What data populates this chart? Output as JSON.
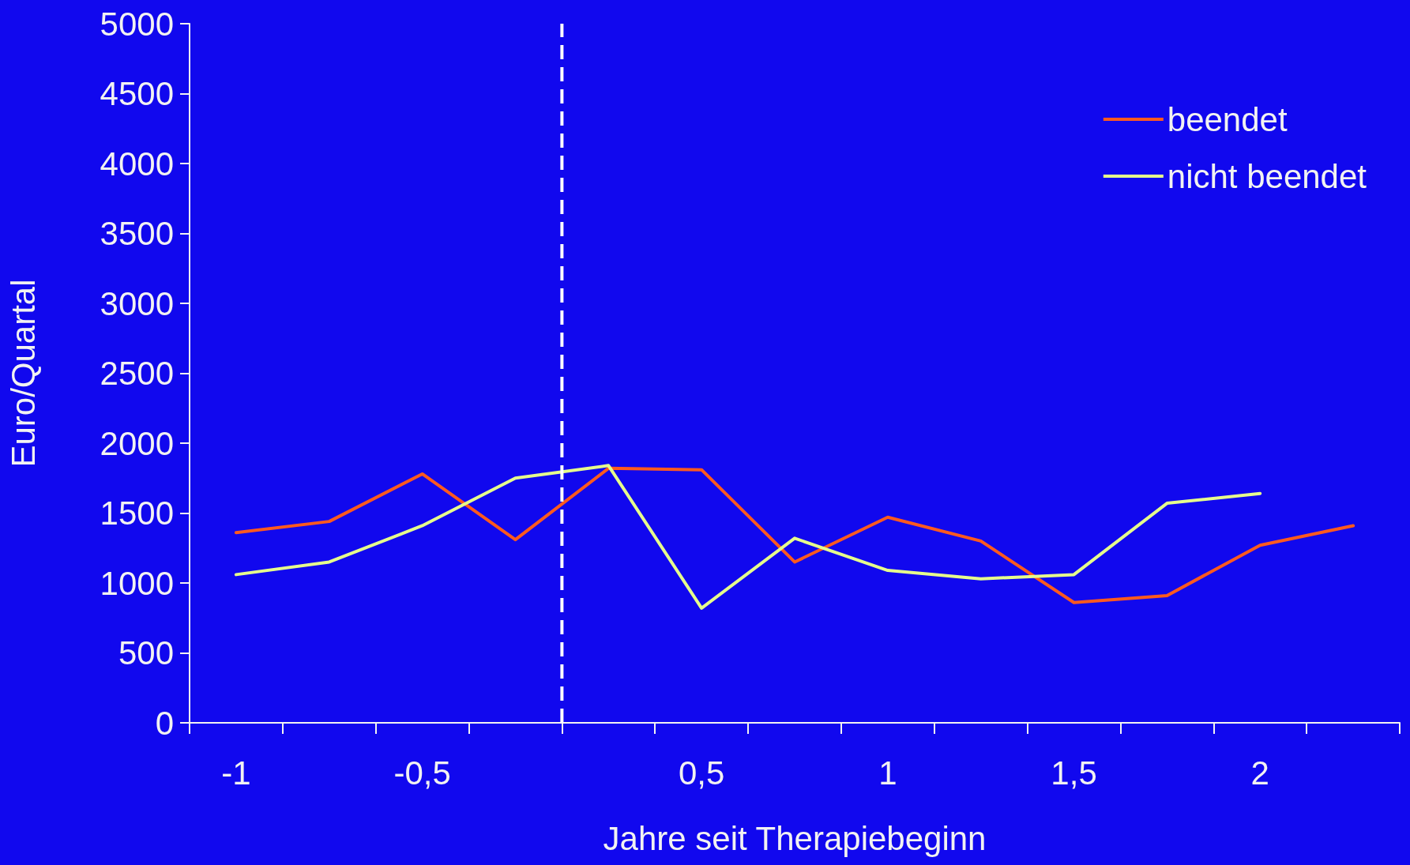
{
  "chart_data": {
    "type": "line",
    "xlabel": "Jahre seit Therapiebeginn",
    "ylabel": "Euro/Quartal",
    "categories": [
      "-1",
      null,
      "-0,5",
      null,
      null,
      "0,5",
      null,
      "1",
      null,
      "1,5",
      null,
      "2",
      null
    ],
    "series": [
      {
        "name": "beendet",
        "color": "#ff5a1e",
        "values": [
          1360,
          1440,
          1780,
          1310,
          1820,
          1810,
          1150,
          1470,
          1300,
          860,
          910,
          1270,
          1410
        ]
      },
      {
        "name": "nicht beendet",
        "color": "#e6ff8c",
        "values": [
          1060,
          1150,
          1410,
          1750,
          1840,
          820,
          1320,
          1090,
          1030,
          1060,
          1570,
          1640,
          null
        ]
      }
    ],
    "ylim": [
      0,
      5000
    ],
    "yticks": [
      0,
      500,
      1000,
      1500,
      2000,
      2500,
      3000,
      3500,
      4000,
      4500,
      5000
    ],
    "grid": false,
    "legend": "top right",
    "marker": "none",
    "line_style": "solid"
  }
}
